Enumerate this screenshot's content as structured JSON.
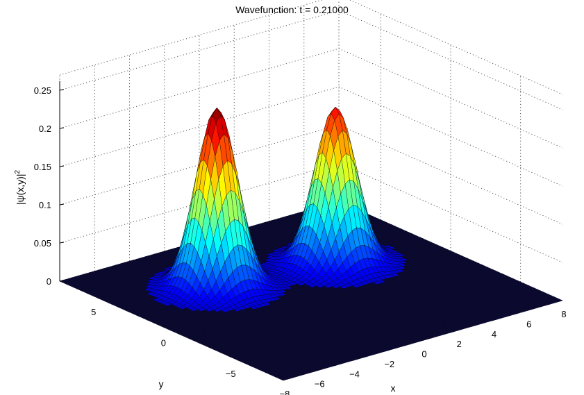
{
  "chart_data": {
    "type": "surface",
    "title": "Wavefunction: t = 0.21000",
    "xlabel": "x",
    "ylabel": "y",
    "zlabel": "|ψ(x,y)|",
    "zlabel_superscript": "2",
    "xlim": [
      -8,
      8
    ],
    "ylim": [
      -8,
      8
    ],
    "zlim": [
      0,
      0.25
    ],
    "x_ticks": [
      "−8",
      "−6",
      "−4",
      "−2",
      "0",
      "2",
      "4",
      "6",
      "8"
    ],
    "y_ticks": [
      "−5",
      "0",
      "5"
    ],
    "z_ticks": [
      "0",
      "0.05",
      "0.1",
      "0.15",
      "0.2",
      "0.25"
    ],
    "grid": true,
    "colormap": "jet",
    "peaks": [
      {
        "x": -3.0,
        "y": 3.0,
        "z": 0.235,
        "sigma": 0.95
      },
      {
        "x": 3.0,
        "y": 2.0,
        "z": 0.205,
        "sigma": 0.95
      }
    ]
  }
}
